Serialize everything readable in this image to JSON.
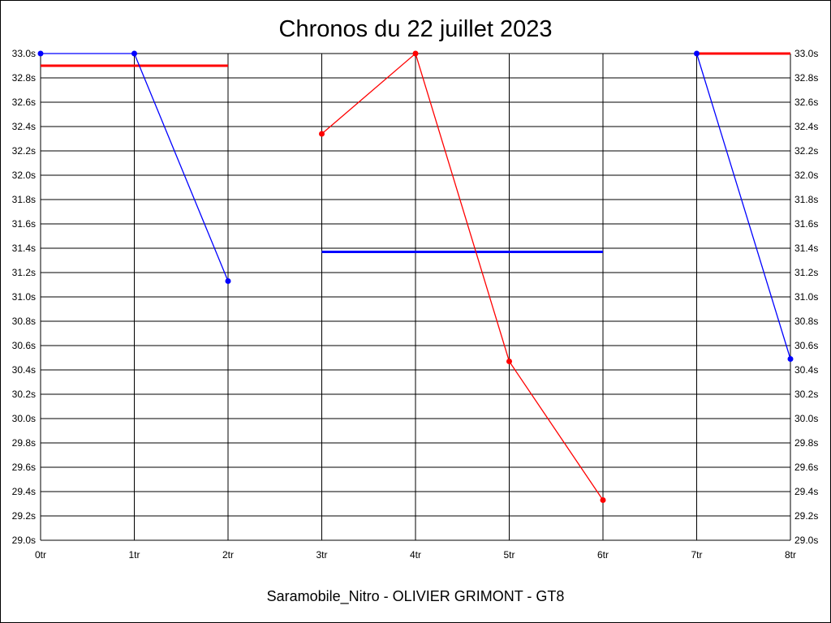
{
  "chart_data": {
    "type": "line",
    "title": "Chronos du 22 juillet 2023",
    "xlabel": "Saramobile_Nitro - OLIVIER GRIMONT - GT8",
    "ylabel": "",
    "x_ticks": [
      "0tr",
      "1tr",
      "2tr",
      "3tr",
      "4tr",
      "5tr",
      "6tr",
      "7tr",
      "8tr"
    ],
    "y_ticks": [
      "29.0s",
      "29.2s",
      "29.4s",
      "29.6s",
      "29.8s",
      "30.0s",
      "30.2s",
      "30.4s",
      "30.6s",
      "30.8s",
      "31.0s",
      "31.2s",
      "31.4s",
      "31.6s",
      "31.8s",
      "32.0s",
      "32.2s",
      "32.4s",
      "32.6s",
      "32.8s",
      "33.0s"
    ],
    "xlim": [
      0,
      8
    ],
    "ylim": [
      29.0,
      33.0
    ],
    "grid": true,
    "colors": {
      "blue": "#0000ff",
      "red": "#ff0000"
    },
    "series": [
      {
        "color": "#0000ff",
        "points": [
          [
            0,
            33.0
          ],
          [
            1,
            33.0
          ],
          [
            2,
            31.13
          ]
        ]
      },
      {
        "color": "#ff0000",
        "points": [
          [
            3,
            32.34
          ],
          [
            4,
            33.0
          ],
          [
            5,
            30.47
          ],
          [
            6,
            29.33
          ]
        ]
      },
      {
        "color": "#0000ff",
        "points": [
          [
            7,
            33.0
          ],
          [
            8,
            30.49
          ]
        ]
      }
    ],
    "reference_lines": [
      {
        "color": "#ff0000",
        "x": [
          0,
          2
        ],
        "y": 32.9
      },
      {
        "color": "#0000ff",
        "x": [
          3,
          6
        ],
        "y": 31.37
      },
      {
        "color": "#ff0000",
        "x": [
          7,
          8
        ],
        "y": 33.0
      }
    ]
  }
}
